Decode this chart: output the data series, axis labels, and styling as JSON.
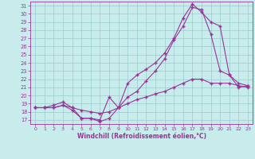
{
  "xlabel": "Windchill (Refroidissement éolien,°C)",
  "bg_color": "#c8ecec",
  "line_color": "#993399",
  "grid_color": "#99cccc",
  "xlim": [
    -0.5,
    23.5
  ],
  "ylim": [
    16.5,
    31.5
  ],
  "xticks": [
    0,
    1,
    2,
    3,
    4,
    5,
    6,
    7,
    8,
    9,
    10,
    11,
    12,
    13,
    14,
    15,
    16,
    17,
    18,
    19,
    20,
    21,
    22,
    23
  ],
  "yticks": [
    17,
    18,
    19,
    20,
    21,
    22,
    23,
    24,
    25,
    26,
    27,
    28,
    29,
    30,
    31
  ],
  "line1_x": [
    0,
    1,
    2,
    3,
    4,
    5,
    6,
    7,
    8,
    9,
    10,
    11,
    12,
    13,
    14,
    15,
    16,
    17,
    18,
    19,
    20,
    21,
    22,
    23
  ],
  "line1_y": [
    18.5,
    18.5,
    18.8,
    19.2,
    18.5,
    17.2,
    17.2,
    17.0,
    19.8,
    18.5,
    21.5,
    22.5,
    23.2,
    24.0,
    25.2,
    27.0,
    29.5,
    31.2,
    30.2,
    29.0,
    28.5,
    22.5,
    21.0,
    21.2
  ],
  "line2_x": [
    0,
    1,
    2,
    3,
    4,
    5,
    6,
    7,
    8,
    9,
    10,
    11,
    12,
    13,
    14,
    15,
    16,
    17,
    18,
    19,
    20,
    21,
    22,
    23
  ],
  "line2_y": [
    18.5,
    18.5,
    18.5,
    18.8,
    18.2,
    17.2,
    17.2,
    16.8,
    17.2,
    18.5,
    19.8,
    20.5,
    21.8,
    23.0,
    24.5,
    26.8,
    28.5,
    30.8,
    30.5,
    27.5,
    23.0,
    22.5,
    21.5,
    21.2
  ],
  "line3_x": [
    0,
    1,
    2,
    3,
    4,
    5,
    6,
    7,
    8,
    9,
    10,
    11,
    12,
    13,
    14,
    15,
    16,
    17,
    18,
    19,
    20,
    21,
    22,
    23
  ],
  "line3_y": [
    18.5,
    18.5,
    18.5,
    18.8,
    18.5,
    18.2,
    18.0,
    17.8,
    18.0,
    18.5,
    19.0,
    19.5,
    19.8,
    20.2,
    20.5,
    21.0,
    21.5,
    22.0,
    22.0,
    21.5,
    21.5,
    21.5,
    21.2,
    21.0
  ]
}
